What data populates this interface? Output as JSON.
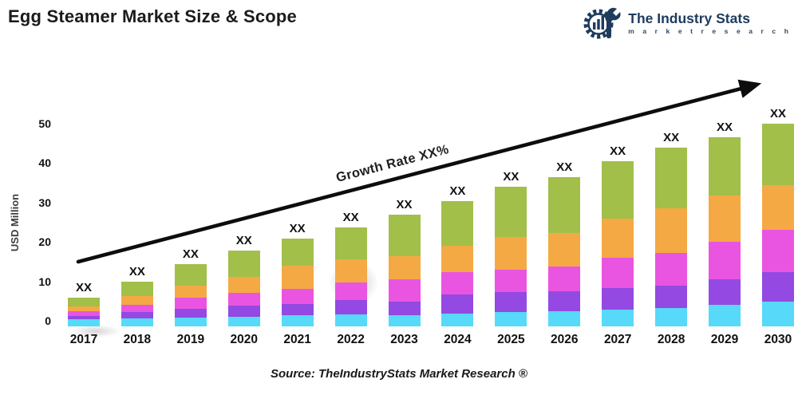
{
  "title": "Egg Steamer Market Size & Scope",
  "logo": {
    "name": "The Industry Stats",
    "tagline": "m a r k e t   r e s e a r c h",
    "color": "#1d3b5d"
  },
  "growth_label": "Growth Rate XX%",
  "bar_value_label": "XX",
  "source": "Source: TheIndustryStats Market Research ®",
  "y_axis": {
    "label": "USD Million",
    "ticks": [
      0,
      10,
      20,
      30,
      40,
      50
    ]
  },
  "chart_data": {
    "type": "bar",
    "subtype": "stacked",
    "title": "Egg Steamer Market Size & Scope",
    "xlabel": "",
    "ylabel": "USD Million",
    "ylim": [
      0,
      50
    ],
    "grid": false,
    "legend": "none",
    "value_labels": "XX above every bar (values masked)",
    "annotation": "Growth Rate XX% along rising arrow",
    "categories": [
      2017,
      2018,
      2019,
      2020,
      2021,
      2022,
      2023,
      2024,
      2025,
      2026,
      2027,
      2028,
      2029,
      2030
    ],
    "totals": [
      6.0,
      10.0,
      14.5,
      18.0,
      21.0,
      23.7,
      27.0,
      30.5,
      34.0,
      36.5,
      40.5,
      44.0,
      46.5,
      50.0
    ],
    "series": [
      {
        "name": "cyan-segment",
        "color": "#57d9f9",
        "values": [
          0.6,
          0.9,
          1.1,
          1.3,
          1.7,
          1.8,
          1.6,
          2.1,
          2.4,
          2.7,
          3.0,
          3.5,
          4.2,
          5.0
        ]
      },
      {
        "name": "purple-segment",
        "color": "#9349e2",
        "values": [
          0.9,
          1.5,
          2.2,
          2.7,
          2.7,
          3.7,
          3.4,
          4.7,
          5.1,
          5.0,
          5.5,
          5.6,
          6.5,
          7.4
        ]
      },
      {
        "name": "magenta-segment",
        "color": "#e955e0",
        "values": [
          1.1,
          1.8,
          2.7,
          3.2,
          3.8,
          4.4,
          5.7,
          5.7,
          5.7,
          6.2,
          7.6,
          8.2,
          9.5,
          10.7
        ]
      },
      {
        "name": "orange-segment",
        "color": "#f4a944",
        "values": [
          1.3,
          2.2,
          3.1,
          4.0,
          5.9,
          5.9,
          5.9,
          6.6,
          8.1,
          8.5,
          10.0,
          11.4,
          11.6,
          11.4
        ]
      },
      {
        "name": "green-segment",
        "color": "#a2bf4a",
        "values": [
          2.1,
          3.6,
          5.4,
          6.8,
          6.9,
          7.9,
          10.4,
          11.4,
          12.7,
          14.1,
          14.4,
          15.3,
          14.7,
          15.5
        ]
      }
    ]
  }
}
